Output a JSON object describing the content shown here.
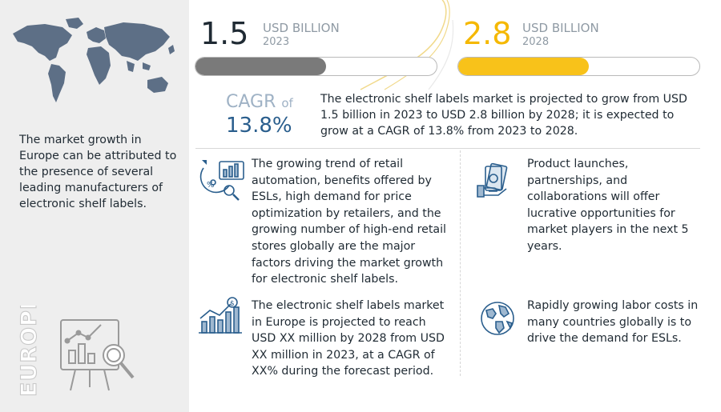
{
  "left_panel": {
    "description": "The market growth in Europe can be attributed to the presence of several leading manufacturers of electronic shelf labels.",
    "region_label": "EUROPE",
    "map_icon": "world-map-icon",
    "board_icon": "analytics-board-icon"
  },
  "stats": [
    {
      "value": "1.5",
      "unit": "USD BILLION",
      "year": "2023",
      "color": "#1f2a33",
      "bar_fill_color": "#7a7a7a",
      "bar_fill_fraction": 0.54
    },
    {
      "value": "2.8",
      "unit": "USD BILLION",
      "year": "2028",
      "color": "#f5b800",
      "bar_fill_color": "#f8c21a",
      "bar_fill_fraction": 0.54
    }
  ],
  "cagr": {
    "label": "CAGR",
    "of": "of",
    "value": "13.8%",
    "text": "The electronic shelf labels market is projected to grow from USD 1.5 billion in 2023 to USD 2.8 billion by 2028; it is expected to grow at a CAGR of 13.8% from 2023 to 2028."
  },
  "cards": {
    "drivers": {
      "icon": "retail-analytics-icon",
      "text": "The growing trend of retail automation, benefits offered by ESLs, high demand for price optimization by retailers, and the growing number of high-end retail stores globally are the major factors driving the market growth for electronic shelf labels."
    },
    "opportunities": {
      "icon": "money-hand-icon",
      "text": "Product launches, partnerships, and collaborations will offer lucrative opportunities for market players in the next 5 years."
    },
    "europe": {
      "icon": "growth-chart-icon",
      "text": "The electronic shelf labels market in Europe is projected to reach USD XX million by 2028 from USD XX million in 2023, at a CAGR of XX% during the forecast period."
    },
    "labor": {
      "icon": "globe-icon",
      "text": "Rapidly growing labor costs in many countries globally is to drive the demand for ESLs."
    }
  },
  "colors": {
    "accent_blue": "#2a5e8d",
    "accent_yellow": "#f5b800",
    "muted_grey": "#8f9aa4",
    "panel_grey": "#eeeeee"
  }
}
